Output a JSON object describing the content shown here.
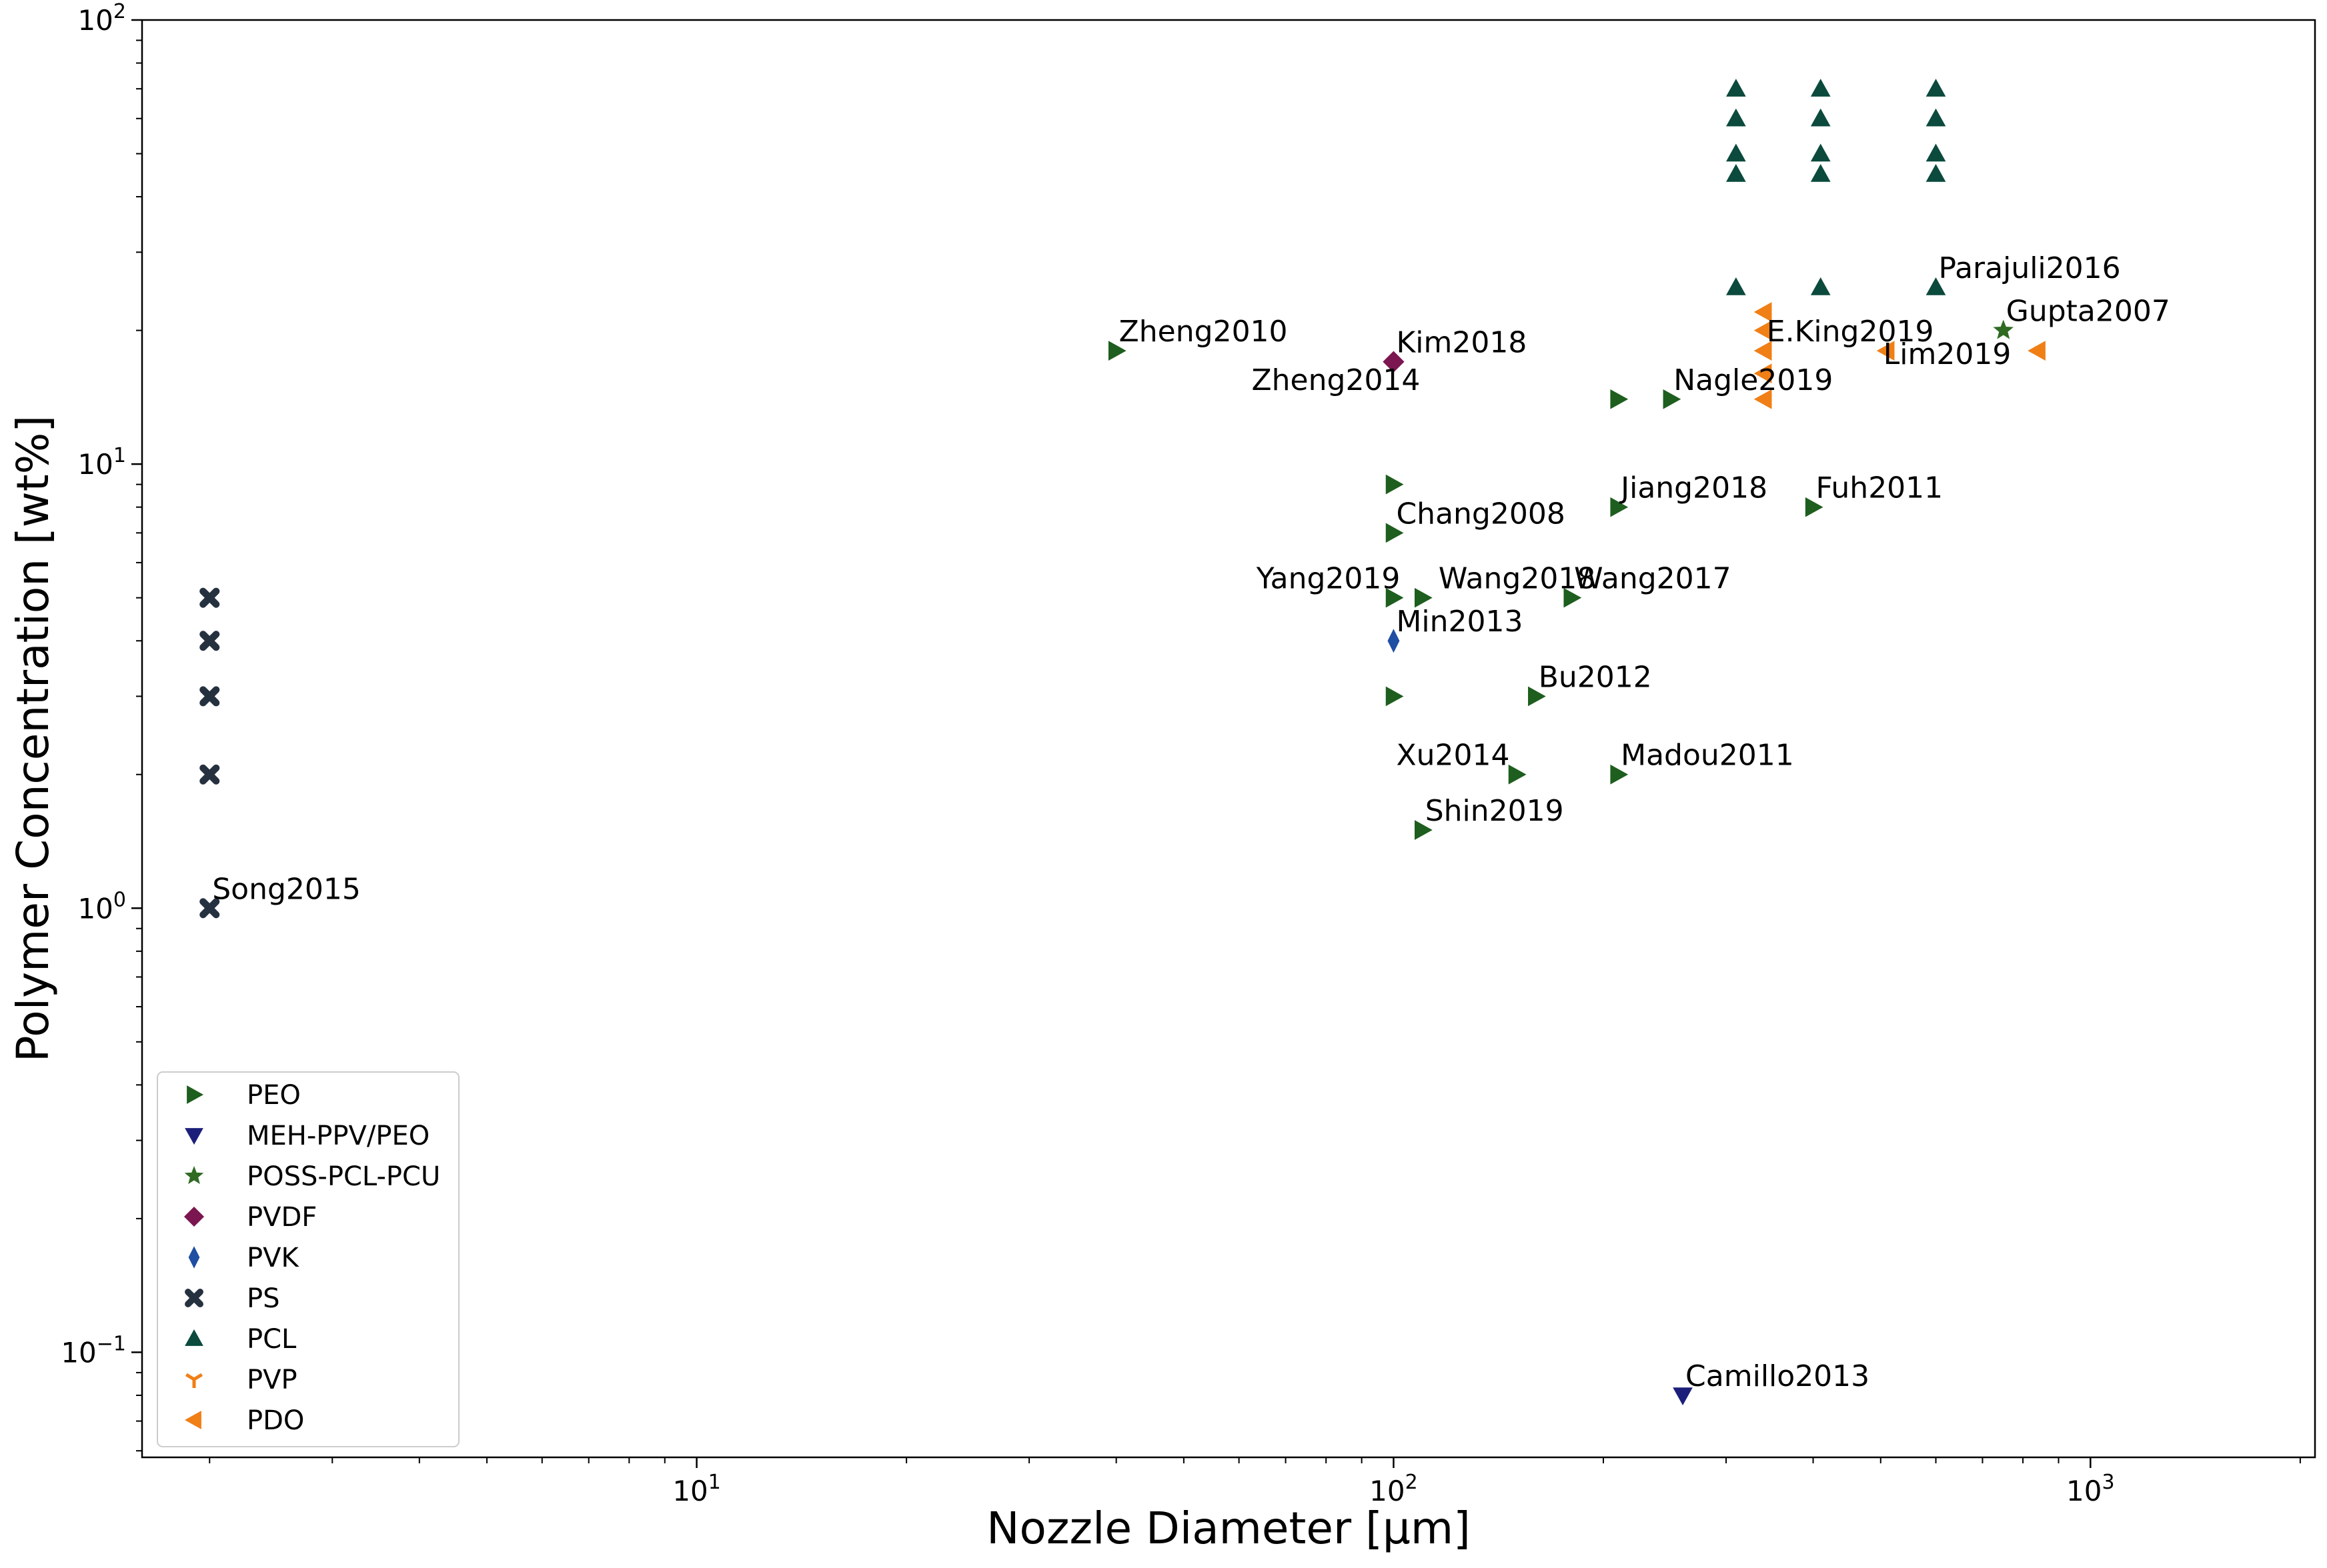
{
  "chart_data": {
    "type": "scatter",
    "xlabel": "Nozzle Diameter    [μm]",
    "ylabel": "Polymer Concentration    [wt%]",
    "xscale": "log",
    "yscale": "log",
    "xlim": [
      1.6,
      2100
    ],
    "ylim": [
      0.058,
      100
    ],
    "grid": false,
    "legend_position": "lower left",
    "x_ticks": [
      {
        "value": 10,
        "base": "10",
        "exp": "1"
      },
      {
        "value": 100,
        "base": "10",
        "exp": "2"
      },
      {
        "value": 1000,
        "base": "10",
        "exp": "3"
      }
    ],
    "y_ticks": [
      {
        "value": 0.1,
        "base": "10",
        "exp": "−1"
      },
      {
        "value": 1,
        "base": "10",
        "exp": "0"
      },
      {
        "value": 10,
        "base": "10",
        "exp": "1"
      },
      {
        "value": 100,
        "base": "10",
        "exp": "2"
      }
    ],
    "series": [
      {
        "name": "PEO",
        "marker": "triangle-right",
        "color": "#1e5e1e",
        "points": [
          [
            40,
            18
          ],
          [
            100,
            9
          ],
          [
            100,
            7
          ],
          [
            100,
            5
          ],
          [
            110,
            5
          ],
          [
            180,
            5
          ],
          [
            100,
            3
          ],
          [
            160,
            3
          ],
          [
            150,
            2
          ],
          [
            210,
            2
          ],
          [
            110,
            1.5
          ],
          [
            210,
            14
          ],
          [
            250,
            14
          ],
          [
            210,
            8
          ],
          [
            400,
            8
          ]
        ]
      },
      {
        "name": "MEH-PPV/PEO",
        "marker": "triangle-down",
        "color": "#1c1f7a",
        "points": [
          [
            260,
            0.08
          ]
        ]
      },
      {
        "name": "POSS-PCL-PCU",
        "marker": "star",
        "color": "#2f6b22",
        "points": [
          [
            750,
            20
          ]
        ]
      },
      {
        "name": "PVDF",
        "marker": "diamond",
        "color": "#7b1650",
        "points": [
          [
            100,
            17
          ]
        ]
      },
      {
        "name": "PVK",
        "marker": "thin-diamond",
        "color": "#1f4ea3",
        "points": [
          [
            100,
            4
          ]
        ]
      },
      {
        "name": "PS",
        "marker": "x-filled",
        "color": "#263140",
        "points": [
          [
            2,
            5
          ],
          [
            2,
            4
          ],
          [
            2,
            3
          ],
          [
            2,
            2
          ],
          [
            2,
            1
          ]
        ]
      },
      {
        "name": "PCL",
        "marker": "triangle-up",
        "color": "#0b4a3d",
        "points": [
          [
            310,
            70
          ],
          [
            310,
            60
          ],
          [
            310,
            50
          ],
          [
            310,
            45
          ],
          [
            310,
            25
          ],
          [
            410,
            70
          ],
          [
            410,
            60
          ],
          [
            410,
            50
          ],
          [
            410,
            45
          ],
          [
            410,
            25
          ],
          [
            600,
            70
          ],
          [
            600,
            60
          ],
          [
            600,
            50
          ],
          [
            600,
            45
          ],
          [
            600,
            25
          ]
        ]
      },
      {
        "name": "PVP",
        "marker": "tri-down",
        "color": "#f07f16",
        "points": []
      },
      {
        "name": "PDO",
        "marker": "triangle-left",
        "color": "#f07f16",
        "points": [
          [
            340,
            22
          ],
          [
            340,
            20
          ],
          [
            340,
            18
          ],
          [
            340,
            16
          ],
          [
            340,
            14
          ],
          [
            510,
            18
          ],
          [
            840,
            18
          ]
        ]
      }
    ],
    "annotations": [
      {
        "text": "Zheng2010",
        "x": 40,
        "y": 18
      },
      {
        "text": "Kim2018",
        "x": 100,
        "y": 17
      },
      {
        "text": "Zheng2014",
        "x": 62,
        "y": 14
      },
      {
        "text": "Nagle2019",
        "x": 250,
        "y": 14
      },
      {
        "text": "E.King2019",
        "x": 340,
        "y": 18
      },
      {
        "text": "Lim2019",
        "x": 500,
        "y": 16
      },
      {
        "text": "Gupta2007",
        "x": 750,
        "y": 20
      },
      {
        "text": "Parajuli2016",
        "x": 600,
        "y": 25
      },
      {
        "text": "Jiang2018",
        "x": 210,
        "y": 8
      },
      {
        "text": "Fuh2011",
        "x": 400,
        "y": 8
      },
      {
        "text": "Chang2008",
        "x": 100,
        "y": 7
      },
      {
        "text": "Yang2019",
        "x": 63,
        "y": 5
      },
      {
        "text": "Wang2018",
        "x": 115,
        "y": 5
      },
      {
        "text": "Wang2017",
        "x": 180,
        "y": 5
      },
      {
        "text": "Min2013",
        "x": 100,
        "y": 4
      },
      {
        "text": "Bu2012",
        "x": 160,
        "y": 3
      },
      {
        "text": "Xu2014",
        "x": 100,
        "y": 2
      },
      {
        "text": "Madou2011",
        "x": 210,
        "y": 2
      },
      {
        "text": "Shin2019",
        "x": 110,
        "y": 1.5
      },
      {
        "text": "Song2015",
        "x": 2,
        "y": 1
      },
      {
        "text": "Camillo2013",
        "x": 260,
        "y": 0.08
      }
    ]
  }
}
